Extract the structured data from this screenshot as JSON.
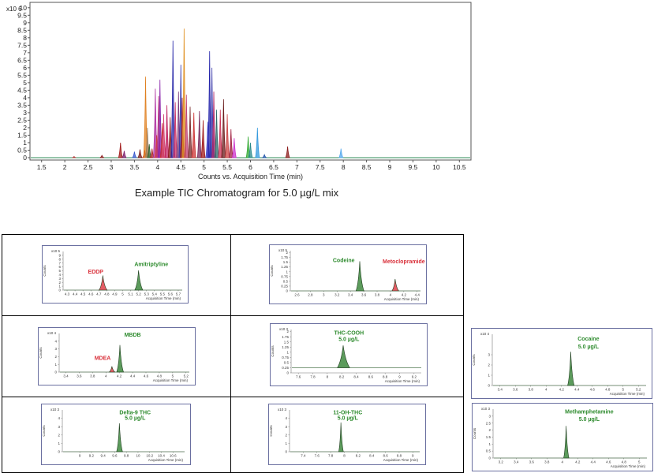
{
  "caption": "Example TIC Chromatogram for 5.0 µg/L mix",
  "colors": {
    "green": "#3f8a3f",
    "red": "#e0404a",
    "frame": "#6a6fa0",
    "green_text": "#2e8b2e",
    "red_text": "#d9303a"
  },
  "chart_data": [
    {
      "id": "tic",
      "type": "line",
      "title": "",
      "xlabel": "Counts vs. Acquisition Time (min)",
      "ylabel": "",
      "y_multiplier": "x10 6",
      "xlim": [
        1.25,
        10.75
      ],
      "ylim": [
        0,
        10.2
      ],
      "xticks": [
        "1.5",
        "2",
        "2.5",
        "3",
        "3.5",
        "4",
        "4.5",
        "5",
        "5.5",
        "6",
        "6.5",
        "7",
        "7.5",
        "8",
        "8.5",
        "9",
        "9.5",
        "10",
        "10.5"
      ],
      "yticks": [
        "0",
        "0.5",
        "1",
        "1.5",
        "2",
        "2.5",
        "3",
        "3.5",
        "4",
        "4.5",
        "5",
        "5.5",
        "6",
        "6.5",
        "7",
        "7.5",
        "8",
        "8.5",
        "9",
        "9.5",
        "10"
      ],
      "peaks": [
        {
          "x": 2.2,
          "h": 0.08,
          "c": "#b03a3a"
        },
        {
          "x": 2.8,
          "h": 0.15,
          "c": "#8b1a1a"
        },
        {
          "x": 3.2,
          "h": 1.0,
          "c": "#a01818"
        },
        {
          "x": 3.28,
          "h": 0.45,
          "c": "#7a1a6a"
        },
        {
          "x": 3.5,
          "h": 0.4,
          "c": "#3355cc"
        },
        {
          "x": 3.62,
          "h": 0.55,
          "c": "#7a1a1a"
        },
        {
          "x": 3.72,
          "h": 0.5,
          "c": "#cc3333"
        },
        {
          "x": 3.74,
          "h": 5.4,
          "c": "#e08020"
        },
        {
          "x": 3.78,
          "h": 2.0,
          "c": "#a08060"
        },
        {
          "x": 3.82,
          "h": 0.9,
          "c": "#336633"
        },
        {
          "x": 3.88,
          "h": 0.6,
          "c": "#aa2222"
        },
        {
          "x": 3.95,
          "h": 4.6,
          "c": "#b030a0"
        },
        {
          "x": 3.98,
          "h": 1.5,
          "c": "#d04040"
        },
        {
          "x": 4.02,
          "h": 4.1,
          "c": "#b8337a"
        },
        {
          "x": 4.05,
          "h": 5.2,
          "c": "#8822aa"
        },
        {
          "x": 4.1,
          "h": 2.3,
          "c": "#cc3333"
        },
        {
          "x": 4.13,
          "h": 2.9,
          "c": "#d04070"
        },
        {
          "x": 4.2,
          "h": 3.5,
          "c": "#c02060"
        },
        {
          "x": 4.27,
          "h": 2.7,
          "c": "#8a1a1a"
        },
        {
          "x": 4.33,
          "h": 7.8,
          "c": "#2a2aaa"
        },
        {
          "x": 4.38,
          "h": 3.7,
          "c": "#cc3366"
        },
        {
          "x": 4.45,
          "h": 4.4,
          "c": "#7a3a7a"
        },
        {
          "x": 4.5,
          "h": 6.2,
          "c": "#3a3aaa"
        },
        {
          "x": 4.53,
          "h": 4.0,
          "c": "#a02020"
        },
        {
          "x": 4.57,
          "h": 8.6,
          "c": "#e09020"
        },
        {
          "x": 4.62,
          "h": 4.2,
          "c": "#c04070"
        },
        {
          "x": 4.7,
          "h": 3.4,
          "c": "#7a2a2a"
        },
        {
          "x": 4.78,
          "h": 3.0,
          "c": "#cc3333"
        },
        {
          "x": 4.9,
          "h": 3.1,
          "c": "#7a2a5a"
        },
        {
          "x": 4.98,
          "h": 2.5,
          "c": "#a01818"
        },
        {
          "x": 5.08,
          "h": 2.4,
          "c": "#4444cc"
        },
        {
          "x": 5.12,
          "h": 7.1,
          "c": "#2222aa"
        },
        {
          "x": 5.17,
          "h": 6.0,
          "c": "#3a3aaa"
        },
        {
          "x": 5.21,
          "h": 4.4,
          "c": "#aa2266"
        },
        {
          "x": 5.27,
          "h": 3.2,
          "c": "#2a6a6a"
        },
        {
          "x": 5.35,
          "h": 3.2,
          "c": "#cc3355"
        },
        {
          "x": 5.42,
          "h": 3.9,
          "c": "#6a1a1a"
        },
        {
          "x": 5.5,
          "h": 2.9,
          "c": "#cc4444"
        },
        {
          "x": 5.58,
          "h": 1.9,
          "c": "#a02040"
        },
        {
          "x": 5.65,
          "h": 1.3,
          "c": "#cc33cc"
        },
        {
          "x": 5.95,
          "h": 1.4,
          "c": "#33aa33"
        },
        {
          "x": 6.0,
          "h": 1.0,
          "c": "#2a8a8a"
        },
        {
          "x": 6.15,
          "h": 2.0,
          "c": "#3399dd"
        },
        {
          "x": 6.3,
          "h": 0.2,
          "c": "#2255aa"
        },
        {
          "x": 6.8,
          "h": 0.75,
          "c": "#8b1a1a"
        },
        {
          "x": 7.95,
          "h": 0.6,
          "c": "#55aaee"
        }
      ]
    },
    {
      "id": "p1",
      "type": "line",
      "title": "",
      "xlabel": "Acquisition Time (min)",
      "ylabel": "Counts",
      "y_multiplier": "x10 5",
      "xlim": [
        4.25,
        5.75
      ],
      "ylim": [
        0,
        10
      ],
      "xticks": [
        "4.3",
        "4.4",
        "4.5",
        "4.6",
        "4.7",
        "4.8",
        "4.9",
        "5",
        "5.1",
        "5.2",
        "5.3",
        "5.4",
        "5.5",
        "5.6",
        "5.7"
      ],
      "yticks": [
        "0",
        "1",
        "2",
        "3",
        "4",
        "5",
        "6",
        "7",
        "8",
        "9"
      ],
      "peaks": [
        {
          "name": "EDDP",
          "x": 4.75,
          "h": 3.8,
          "w": 0.03,
          "c": "#e0404a"
        },
        {
          "name": "Amitriptyline",
          "x": 5.2,
          "h": 5.1,
          "w": 0.03,
          "c": "#3f8a3f"
        }
      ],
      "series_labels": [
        "EDDP",
        "Amitriptyline"
      ],
      "label_colors": [
        "#d9303a",
        "#2e8b2e"
      ],
      "label_x": [
        4.66,
        5.36
      ],
      "label_y": [
        4.3,
        6.2
      ]
    },
    {
      "id": "p2",
      "type": "line",
      "title": "",
      "xlabel": "Acquisition Time (min)",
      "ylabel": "Counts",
      "y_multiplier": "x10 5",
      "xlim": [
        2.5,
        4.45
      ],
      "ylim": [
        0,
        2.1
      ],
      "xticks": [
        "2.6",
        "2.8",
        "3",
        "3.2",
        "3.4",
        "3.6",
        "3.8",
        "4",
        "4.2",
        "4.4"
      ],
      "yticks": [
        "0",
        "0.25",
        "0.5",
        "0.75",
        "1",
        "1.25",
        "1.5",
        "1.75",
        "2"
      ],
      "peaks": [
        {
          "name": "Codeine",
          "x": 3.54,
          "h": 1.55,
          "w": 0.035,
          "c": "#3f8a3f"
        },
        {
          "name": "Metoclopramide",
          "x": 4.07,
          "h": 0.62,
          "w": 0.03,
          "c": "#e0404a"
        }
      ],
      "series_labels": [
        "Codeine",
        "Metoclopramide"
      ],
      "label_colors": [
        "#2e8b2e",
        "#d9303a"
      ],
      "label_x": [
        3.3,
        4.2
      ],
      "label_y": [
        1.5,
        1.45
      ]
    },
    {
      "id": "p3",
      "type": "line",
      "title": "",
      "xlabel": "Acquisition Time (min)",
      "ylabel": "Counts",
      "y_multiplier": "x10 4",
      "xlim": [
        3.3,
        5.25
      ],
      "ylim": [
        0,
        5
      ],
      "xticks": [
        "3.4",
        "3.6",
        "3.8",
        "4",
        "4.2",
        "4.4",
        "4.6",
        "4.8",
        "5",
        "5.2"
      ],
      "yticks": [
        "0",
        "1",
        "2",
        "3",
        "4"
      ],
      "peaks": [
        {
          "name": "MDEA",
          "x": 4.09,
          "h": 0.75,
          "w": 0.025,
          "c": "#e0404a"
        },
        {
          "name": "MBDB",
          "x": 4.21,
          "h": 3.5,
          "w": 0.03,
          "c": "#3f8a3f"
        }
      ],
      "series_labels": [
        "MDEA",
        "MBDB"
      ],
      "label_colors": [
        "#d9303a",
        "#2e8b2e"
      ],
      "label_x": [
        3.95,
        4.4
      ],
      "label_y": [
        1.6,
        4.6
      ]
    },
    {
      "id": "p4",
      "type": "line",
      "title": "",
      "xlabel": "Acquisition Time (min)",
      "ylabel": "Counts",
      "y_multiplier": "x10 3",
      "xlim": [
        7.5,
        9.3
      ],
      "ylim": [
        0,
        2.1
      ],
      "xticks": [
        "7.6",
        "7.8",
        "8",
        "8.2",
        "8.4",
        "8.6",
        "8.8",
        "9",
        "9.2"
      ],
      "yticks": [
        "0",
        "0.25",
        "0.5",
        "0.75",
        "1",
        "1.25",
        "1.5",
        "1.75",
        "2"
      ],
      "peaks": [
        {
          "name": "THC-COOH",
          "x": 8.22,
          "h": 1.33,
          "w": 0.05,
          "c": "#3f8a3f"
        }
      ],
      "baseline": 0.25,
      "series_labels": [
        "THC-COOH",
        "5.0 µg/L"
      ],
      "label_colors": [
        "#2e8b2e",
        "#2e8b2e"
      ],
      "label_x": [
        8.3,
        8.3
      ],
      "label_y": [
        1.85,
        1.55
      ]
    },
    {
      "id": "p5",
      "type": "line",
      "title": "",
      "xlabel": "Acquisition Time (min)",
      "ylabel": "Counts",
      "y_multiplier": "x10 4",
      "xlim": [
        3.3,
        5.3
      ],
      "ylim": [
        0,
        5
      ],
      "xticks": [
        "3.4",
        "3.6",
        "3.8",
        "4",
        "4.2",
        "4.4",
        "4.6",
        "4.8",
        "5",
        "5.2"
      ],
      "yticks": [
        "0",
        "1",
        "2",
        "3"
      ],
      "peaks": [
        {
          "name": "Cocaine",
          "x": 4.32,
          "h": 3.3,
          "w": 0.025,
          "c": "#3f8a3f"
        }
      ],
      "series_labels": [
        "Cocaine",
        "5.0 µg/L"
      ],
      "label_colors": [
        "#2e8b2e",
        "#2e8b2e"
      ],
      "label_x": [
        4.55,
        4.55
      ],
      "label_y": [
        4.4,
        3.6
      ]
    },
    {
      "id": "p6",
      "type": "line",
      "title": "",
      "xlabel": "Acquisition Time (min)",
      "ylabel": "Counts",
      "y_multiplier": "x10 3",
      "xlim": [
        8.7,
        10.8
      ],
      "ylim": [
        0,
        5
      ],
      "xticks": [
        "9",
        "9.2",
        "9.4",
        "9.6",
        "9.8",
        "10",
        "10.2",
        "10.4",
        "10.6"
      ],
      "yticks": [
        "0",
        "1",
        "2",
        "3",
        "4"
      ],
      "peaks": [
        {
          "name": "Delta-9 THC",
          "x": 9.68,
          "h": 3.4,
          "w": 0.03,
          "c": "#3f8a3f"
        }
      ],
      "series_labels": [
        "Delta-9 THC",
        "5.0 µg/L"
      ],
      "label_colors": [
        "#2e8b2e",
        "#2e8b2e"
      ],
      "label_x": [
        9.95,
        9.95
      ],
      "label_y": [
        4.5,
        3.8
      ]
    },
    {
      "id": "p7",
      "type": "line",
      "title": "",
      "xlabel": "Acquisition Time (min)",
      "ylabel": "Counts",
      "y_multiplier": "x10 3",
      "xlim": [
        7.2,
        9.1
      ],
      "ylim": [
        0,
        5
      ],
      "xticks": [
        "7.4",
        "7.6",
        "7.8",
        "8",
        "8.2",
        "8.4",
        "8.6",
        "8.8",
        "9"
      ],
      "yticks": [
        "0",
        "1",
        "2",
        "3",
        "4"
      ],
      "peaks": [
        {
          "name": "11-OH-THC",
          "x": 7.95,
          "h": 3.5,
          "w": 0.02,
          "c": "#3f8a3f"
        }
      ],
      "series_labels": [
        "11-OH-THC",
        "5.0 µg/L"
      ],
      "label_colors": [
        "#2e8b2e",
        "#2e8b2e"
      ],
      "label_x": [
        8.05,
        8.05
      ],
      "label_y": [
        4.5,
        3.8
      ]
    },
    {
      "id": "p8",
      "type": "line",
      "title": "",
      "xlabel": "Acquisition Time (min)",
      "ylabel": "Counts",
      "y_multiplier": "x10 3",
      "xlim": [
        3.1,
        5.1
      ],
      "ylim": [
        0,
        3.5
      ],
      "xticks": [
        "3.2",
        "3.4",
        "3.6",
        "3.8",
        "4",
        "4.2",
        "4.4",
        "4.6",
        "4.8",
        "5"
      ],
      "yticks": [
        "0",
        "0.5",
        "1",
        "1.5",
        "2",
        "2.5",
        "3"
      ],
      "peaks": [
        {
          "name": "Methamphetamine",
          "x": 4.05,
          "h": 2.3,
          "w": 0.02,
          "c": "#3f8a3f"
        }
      ],
      "series_labels": [
        "Methamphetamine",
        "5.0 µg/L"
      ],
      "label_colors": [
        "#2e8b2e",
        "#2e8b2e"
      ],
      "label_x": [
        4.35,
        4.35
      ],
      "label_y": [
        3.2,
        2.65
      ]
    }
  ]
}
